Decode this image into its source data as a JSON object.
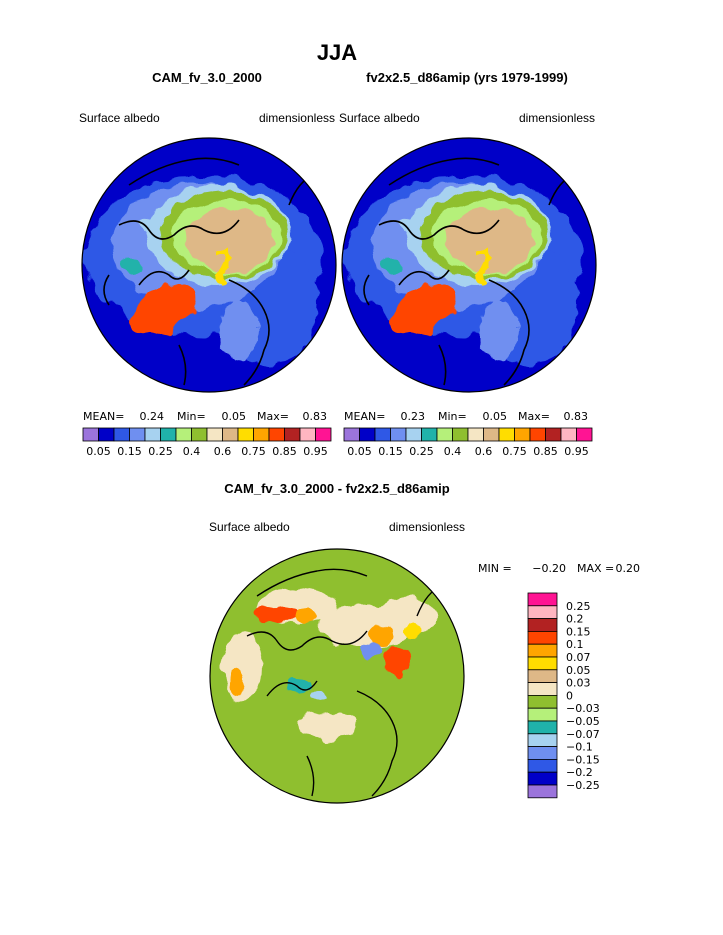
{
  "figure": {
    "season": "JJA",
    "left_panel": {
      "title": "CAM_fv_3.0_2000",
      "variable": "Surface albedo",
      "units": "dimensionless",
      "stats": {
        "mean_label": "MEAN=",
        "mean": "0.24",
        "min_label": "Min=",
        "min": "0.05",
        "max_label": "Max=",
        "max": "0.83"
      }
    },
    "right_panel": {
      "title": "fv2x2.5_d86amip (yrs 1979-1999)",
      "variable": "Surface albedo",
      "units": "dimensionless",
      "stats": {
        "mean_label": "MEAN=",
        "mean": "0.23",
        "min_label": "Min=",
        "min": "0.05",
        "max_label": "Max=",
        "max": "0.83"
      }
    },
    "diff_panel": {
      "title": "CAM_fv_3.0_2000 - fv2x2.5_d86amip",
      "variable": "Surface albedo",
      "units": "dimensionless",
      "stats": {
        "min_label": "MIN =",
        "min": "−0.20",
        "max_label": "MAX =",
        "max": "0.20"
      }
    }
  },
  "chart_data": [
    {
      "type": "map-colorbar",
      "name": "field colour scale",
      "orientation": "horizontal",
      "levels": [
        "0.05",
        "0.15",
        "0.25",
        "0.4",
        "0.6",
        "0.75",
        "0.85",
        "0.95"
      ],
      "colors": [
        "#9b74dc",
        "#0000c8",
        "#2f58e6",
        "#6f8ff0",
        "#a7d2f0",
        "#20b2aa",
        "#b5f07a",
        "#8fbf2f",
        "#f5e6c4",
        "#deb887",
        "#ffdd00",
        "#ffa500",
        "#ff4500",
        "#b22222",
        "#ffb6c1",
        "#ff1493"
      ]
    },
    {
      "type": "map-colorbar",
      "name": "difference colour scale",
      "orientation": "vertical",
      "levels": [
        "0.25",
        "0.2",
        "0.15",
        "0.1",
        "0.07",
        "0.05",
        "0.03",
        "0",
        "−0.03",
        "−0.05",
        "−0.07",
        "−0.1",
        "−0.15",
        "−0.2",
        "−0.25"
      ],
      "colors": [
        "#ff1493",
        "#ffb6c1",
        "#b22222",
        "#ff4500",
        "#ffa500",
        "#ffdd00",
        "#deb887",
        "#f5e6c4",
        "#8fbf2f",
        "#b5f07a",
        "#20b2aa",
        "#a7d2f0",
        "#6f8ff0",
        "#2f58e6",
        "#0000c8",
        "#9b74dc"
      ]
    }
  ]
}
